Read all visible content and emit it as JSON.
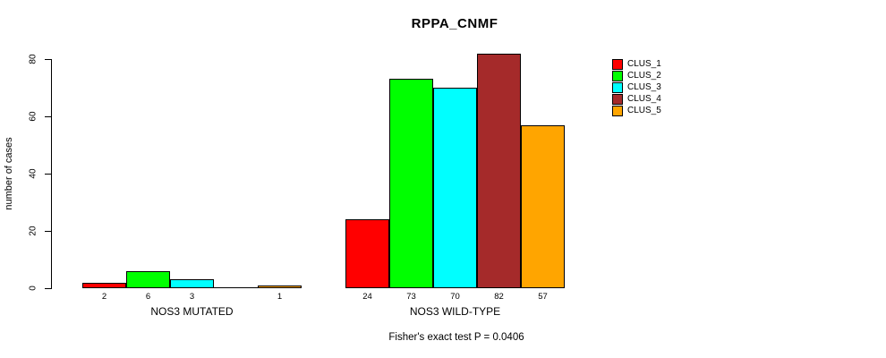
{
  "chart_data": {
    "type": "bar",
    "title": "RPPA_CNMF",
    "ylabel": "number of cases",
    "xlabel": "",
    "categories": [
      "NOS3 MUTATED",
      "NOS3 WILD-TYPE"
    ],
    "series": [
      {
        "name": "CLUS_1",
        "color": "#FF0000",
        "values": [
          2,
          24
        ]
      },
      {
        "name": "CLUS_2",
        "color": "#00FF00",
        "values": [
          6,
          73
        ]
      },
      {
        "name": "CLUS_3",
        "color": "#00FFFF",
        "values": [
          3,
          70
        ]
      },
      {
        "name": "CLUS_4",
        "color": "#A52A2A",
        "values": [
          0,
          82
        ]
      },
      {
        "name": "CLUS_5",
        "color": "#FFA500",
        "values": [
          1,
          57
        ]
      }
    ],
    "yticks": [
      0,
      20,
      40,
      60,
      80
    ],
    "ylim": [
      0,
      80
    ],
    "grid": false,
    "legend_position": "right",
    "bar_value_labels": true,
    "annotation": "Fisher's exact test P = 0.0406"
  }
}
